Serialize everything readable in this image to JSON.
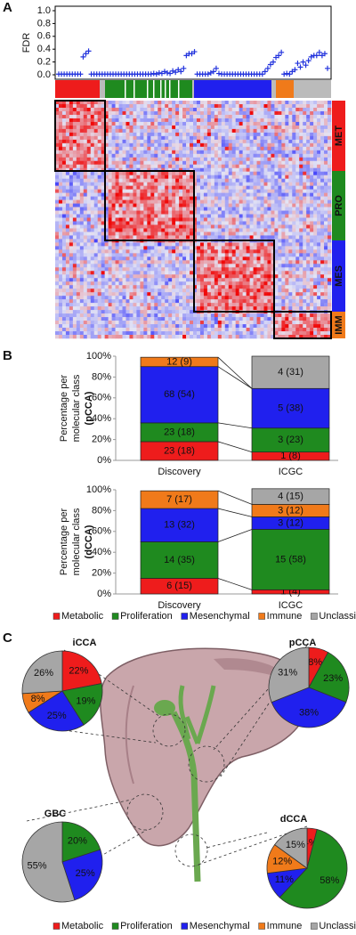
{
  "panel_labels": [
    "A",
    "B",
    "C"
  ],
  "chart_data": [
    {
      "type": "scatter",
      "ylabel": "FDR",
      "color": "#2233dd",
      "ylim": [
        0,
        1
      ],
      "yticks": [
        {
          "value": 0,
          "label": "0.0"
        },
        0.2,
        0.4,
        0.6,
        0.8,
        {
          "value": 1,
          "label": "1.0"
        }
      ],
      "values": [
        0.01,
        0.01,
        0.01,
        0.01,
        0.01,
        0.01,
        0.01,
        0.01,
        0.01,
        0.28,
        0.33,
        0.37,
        0.01,
        0.01,
        0.01,
        0.01,
        0.01,
        0.01,
        0.01,
        0.01,
        0.01,
        0.01,
        0.01,
        0.01,
        0.01,
        0.01,
        0.01,
        0.01,
        0.01,
        0.01,
        0.01,
        0.01,
        0.01,
        0.01,
        0.01,
        0.02,
        0.01,
        0.03,
        0.02,
        0.05,
        0.03,
        0.02,
        0.06,
        0.04,
        0.08,
        0.05,
        0.1,
        0.3,
        0.33,
        0.33,
        0.36,
        0.01,
        0.01,
        0.01,
        0.01,
        0.01,
        0.03,
        0.05,
        0.1,
        0.02,
        0.01,
        0.01,
        0.01,
        0.01,
        0.01,
        0.01,
        0.01,
        0.01,
        0.01,
        0.01,
        0.01,
        0.01,
        0.01,
        0.01,
        0.01,
        0.01,
        0.05,
        0.1,
        0.16,
        0.2,
        0.27,
        0.3,
        0.35,
        0.01,
        0.02,
        0.01,
        0.05,
        0.08,
        0.18,
        0.12,
        0.2,
        0.15,
        0.22,
        0.28,
        0.3,
        0.3,
        0.35,
        0.3,
        0.33,
        0.1
      ],
      "row_groups": [
        "MET",
        "PRO",
        "MES",
        "IMM"
      ],
      "group_colors": [
        "#ee1c1c",
        "#1f8a1f",
        "#2020ee",
        "#f07a1a"
      ]
    },
    {
      "type": "stacked_bar",
      "ylabel": [
        "Percentage per",
        "molecular class",
        "(pCCA)"
      ],
      "categories": [
        "Discovery",
        "ICGC"
      ],
      "ylim": [
        0,
        100
      ],
      "yticks": [
        {
          "value": 0,
          "label": "0%"
        },
        {
          "value": 20,
          "label": "20%"
        },
        {
          "value": 40,
          "label": "40%"
        },
        {
          "value": 60,
          "label": "60%"
        },
        {
          "value": 80,
          "label": "80%"
        },
        {
          "value": 100,
          "label": "100%"
        }
      ],
      "series": [
        {
          "name": "Metabolic",
          "color": "#ee1c1c",
          "values": [
            18,
            8
          ],
          "value_labels": [
            "23 (18)",
            "1 (8)"
          ]
        },
        {
          "name": "Proliferation",
          "color": "#1f8a1f",
          "values": [
            18,
            23
          ],
          "value_labels": [
            "23 (18)",
            "3 (23)"
          ]
        },
        {
          "name": "Mesenchymal",
          "color": "#2020ee",
          "values": [
            54,
            38
          ],
          "value_labels": [
            "68 (54)",
            "5 (38)"
          ]
        },
        {
          "name": "Immune",
          "color": "#f07a1a",
          "values": [
            9,
            null
          ],
          "value_labels": [
            "12 (9)",
            null
          ]
        },
        {
          "name": "Unclassified",
          "color": "#a6a6a6",
          "values": [
            null,
            31
          ],
          "value_labels": [
            null,
            "4 (31)"
          ]
        }
      ]
    },
    {
      "type": "stacked_bar",
      "ylabel": [
        "Percentage per",
        "molecular class",
        "(dCCA)"
      ],
      "categories": [
        "Discovery",
        "ICGC"
      ],
      "ylim": [
        0,
        100
      ],
      "yticks": [
        {
          "value": 0,
          "label": "0%"
        },
        {
          "value": 20,
          "label": "20%"
        },
        {
          "value": 40,
          "label": "40%"
        },
        {
          "value": 60,
          "label": "60%"
        },
        {
          "value": 80,
          "label": "80%"
        },
        {
          "value": 100,
          "label": "100%"
        }
      ],
      "series": [
        {
          "color": "#ee1c1c",
          "values": [
            15,
            4
          ],
          "value_labels": [
            "6 (15)",
            "1 (4)"
          ]
        },
        {
          "color": "#1f8a1f",
          "values": [
            35,
            58
          ],
          "value_labels": [
            "14 (35)",
            "15 (58)"
          ]
        },
        {
          "color": "#2020ee",
          "values": [
            32,
            12
          ],
          "value_labels": [
            "13 (32)",
            "3 (12)"
          ]
        },
        {
          "color": "#f07a1a",
          "values": [
            17,
            12
          ],
          "value_labels": [
            "7 (17)",
            "3 (12)"
          ]
        },
        {
          "color": "#a6a6a6",
          "values": [
            null,
            15
          ],
          "value_labels": [
            null,
            "4 (15)"
          ]
        }
      ]
    },
    {
      "type": "pie",
      "title": "iCCA",
      "categories": [
        "Metabolic",
        "Proliferation",
        "Mesenchymal",
        "Immune",
        "Unclassified"
      ],
      "colors": [
        "#ee1c1c",
        "#1f8a1f",
        "#2020ee",
        "#f07a1a",
        "#a6a6a6"
      ],
      "values": [
        22,
        19,
        25,
        8,
        26
      ],
      "value_labels": [
        "22%",
        "19%",
        "25%",
        "8%",
        "26%"
      ]
    },
    {
      "type": "pie",
      "title": "pCCA",
      "colors": [
        "#ee1c1c",
        "#1f8a1f",
        "#2020ee",
        "#f07a1a",
        "#a6a6a6"
      ],
      "values": [
        8,
        23,
        38,
        null,
        31
      ],
      "value_labels": [
        "8%",
        "23%",
        "38%",
        null,
        "31%"
      ]
    },
    {
      "type": "pie",
      "title": "GBC",
      "colors": [
        "#ee1c1c",
        "#1f8a1f",
        "#2020ee",
        "#f07a1a",
        "#a6a6a6"
      ],
      "values": [
        null,
        20,
        25,
        null,
        55
      ],
      "value_labels": [
        null,
        "20%",
        "25%",
        null,
        "55%"
      ]
    },
    {
      "type": "pie",
      "title": "dCCA",
      "colors": [
        "#ee1c1c",
        "#1f8a1f",
        "#2020ee",
        "#f07a1a",
        "#a6a6a6"
      ],
      "values": [
        4,
        58,
        11,
        12,
        15
      ],
      "value_labels": [
        "4%",
        "58%",
        "11%",
        "12%",
        "15%"
      ]
    }
  ]
}
